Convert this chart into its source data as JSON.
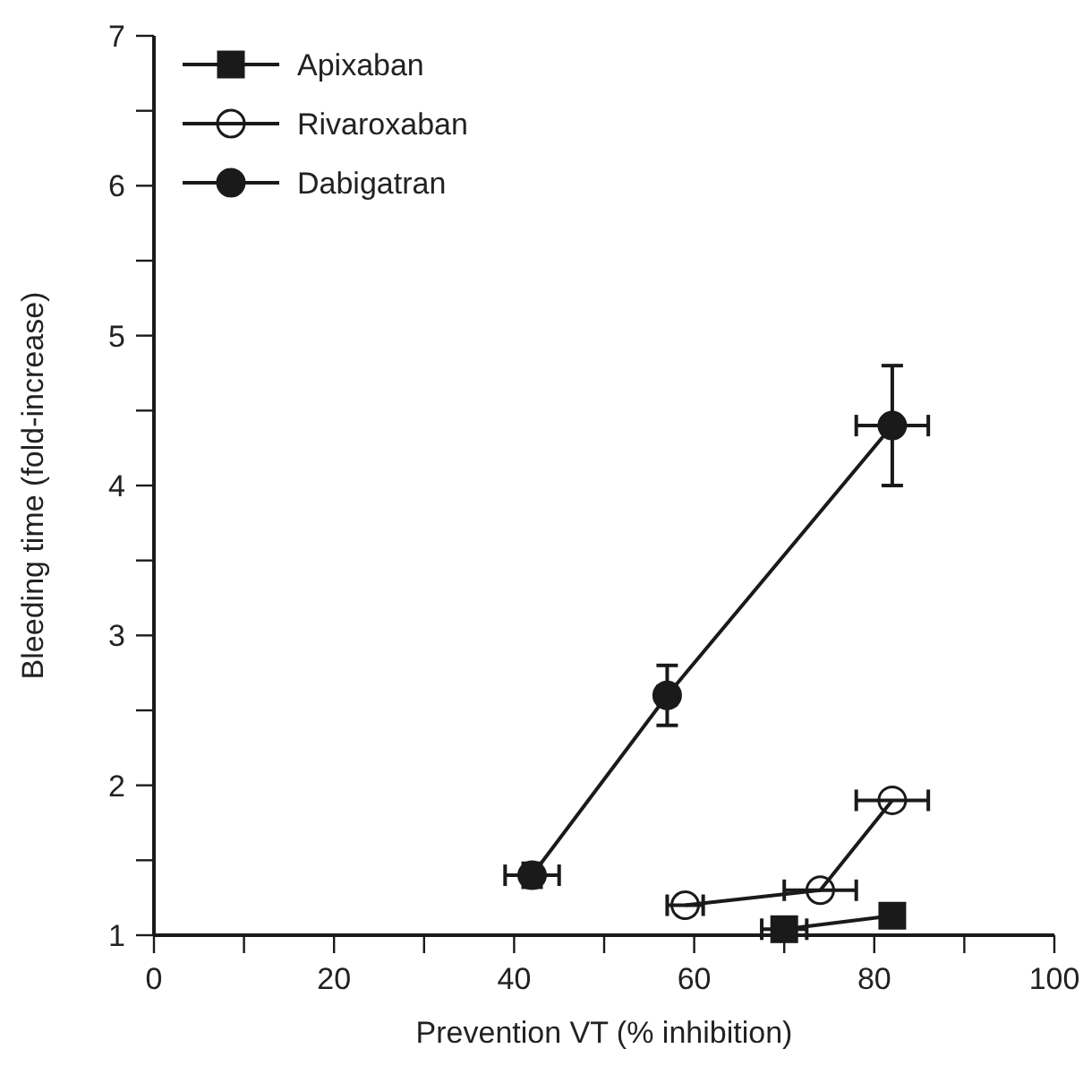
{
  "chart_data": {
    "type": "line",
    "xlabel": "Prevention VT (% inhibition)",
    "ylabel": "Bleeding time (fold-increase)",
    "xlim": [
      0,
      100
    ],
    "ylim": [
      1,
      7
    ],
    "xticks": [
      0,
      {
        "value": 10,
        "label": null
      },
      20,
      {
        "value": 30,
        "label": null
      },
      40,
      {
        "value": 50,
        "label": null
      },
      60,
      {
        "value": 70,
        "label": null
      },
      80,
      {
        "value": 90,
        "label": null
      },
      100
    ],
    "yticks": [
      1,
      {
        "value": 1.5,
        "label": null
      },
      2,
      {
        "value": 2.5,
        "label": null
      },
      3,
      {
        "value": 3.5,
        "label": null
      },
      4,
      {
        "value": 4.5,
        "label": null
      },
      5,
      {
        "value": 5.5,
        "label": null
      },
      6,
      {
        "value": 6.5,
        "label": null
      },
      7
    ],
    "grid": false,
    "legend": "top left",
    "line_style": "solid",
    "series": [
      {
        "name": "Apixaban",
        "color": "#1a1a1a",
        "marker": "square",
        "x": [
          70,
          82
        ],
        "values": [
          1.04,
          1.13
        ],
        "errors": [
          null,
          null
        ],
        "xerrors": [
          2.5,
          null
        ]
      },
      {
        "name": "Rivaroxaban",
        "color": "#1a1a1a",
        "marker": "circle-open",
        "x": [
          59,
          74,
          82
        ],
        "values": [
          1.2,
          1.3,
          1.9
        ],
        "xerrors": [
          2,
          4,
          4
        ]
      },
      {
        "name": "Dabigatran",
        "color": "#1a1a1a",
        "marker": "circle",
        "x": [
          42,
          57,
          82
        ],
        "values": [
          1.4,
          2.6,
          4.4
        ],
        "errors": [
          0.08,
          0.2,
          0.4
        ],
        "xerrors": [
          3,
          1,
          4
        ]
      }
    ]
  }
}
